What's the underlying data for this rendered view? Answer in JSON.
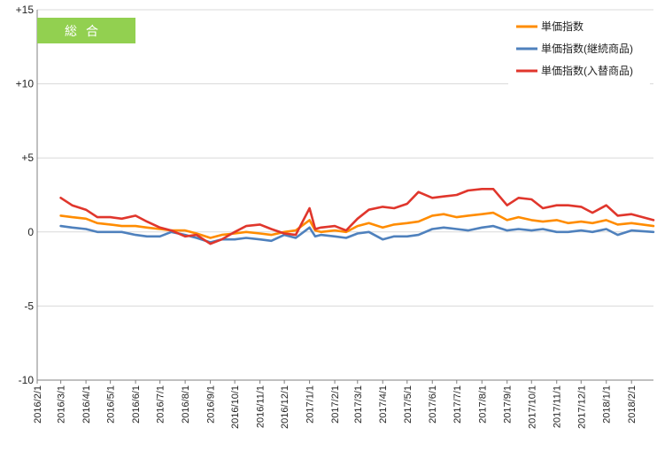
{
  "badge": {
    "label": "総合",
    "color": "#92d050"
  },
  "colors": {
    "axis": "#808080",
    "grid": "#d9d9d9"
  },
  "chart_data": {
    "type": "line",
    "title": "",
    "xlabel": "",
    "ylabel": "",
    "ylim": [
      -10,
      15
    ],
    "yticks": [
      {
        "value": 15,
        "label": "+15"
      },
      {
        "value": 10,
        "label": "+10"
      },
      {
        "value": 5,
        "label": "+5"
      },
      {
        "value": 0,
        "label": "0"
      },
      {
        "value": -5,
        "label": "-5"
      },
      {
        "value": -10,
        "label": "-10"
      }
    ],
    "x_start": "2016/2/1",
    "x_end": "2018/2/28",
    "xticks": [
      "2016/2/1",
      "2016/3/1",
      "2016/4/1",
      "2016/5/1",
      "2016/6/1",
      "2016/7/1",
      "2016/8/1",
      "2016/9/1",
      "2016/10/1",
      "2016/11/1",
      "2016/12/1",
      "2017/1/1",
      "2017/2/1",
      "2017/3/1",
      "2017/4/1",
      "2017/5/1",
      "2017/6/1",
      "2017/7/1",
      "2017/8/1",
      "2017/9/1",
      "2017/10/1",
      "2017/11/1",
      "2017/12/1",
      "2018/1/1",
      "2018/2/1"
    ],
    "grid": "horizontal",
    "legend_position": "top-right",
    "series": [
      {
        "name": "単価指数",
        "color": "#ff8c00",
        "points": [
          [
            "2016/3/1",
            1.1
          ],
          [
            "2016/3/15",
            1.0
          ],
          [
            "2016/4/1",
            0.9
          ],
          [
            "2016/4/15",
            0.6
          ],
          [
            "2016/5/1",
            0.5
          ],
          [
            "2016/5/15",
            0.4
          ],
          [
            "2016/6/1",
            0.4
          ],
          [
            "2016/6/15",
            0.3
          ],
          [
            "2016/7/1",
            0.2
          ],
          [
            "2016/7/15",
            0.1
          ],
          [
            "2016/8/1",
            0.1
          ],
          [
            "2016/8/15",
            -0.1
          ],
          [
            "2016/9/1",
            -0.4
          ],
          [
            "2016/9/15",
            -0.2
          ],
          [
            "2016/10/1",
            -0.1
          ],
          [
            "2016/10/15",
            0.0
          ],
          [
            "2016/11/1",
            -0.1
          ],
          [
            "2016/11/15",
            -0.2
          ],
          [
            "2016/12/1",
            0.0
          ],
          [
            "2016/12/15",
            0.1
          ],
          [
            "2017/1/1",
            0.8
          ],
          [
            "2017/1/8",
            0.1
          ],
          [
            "2017/1/15",
            0.0
          ],
          [
            "2017/2/1",
            0.1
          ],
          [
            "2017/2/15",
            0.0
          ],
          [
            "2017/3/1",
            0.4
          ],
          [
            "2017/3/15",
            0.6
          ],
          [
            "2017/4/1",
            0.3
          ],
          [
            "2017/4/15",
            0.5
          ],
          [
            "2017/5/1",
            0.6
          ],
          [
            "2017/5/15",
            0.7
          ],
          [
            "2017/6/1",
            1.1
          ],
          [
            "2017/6/15",
            1.2
          ],
          [
            "2017/7/1",
            1.0
          ],
          [
            "2017/7/15",
            1.1
          ],
          [
            "2017/8/1",
            1.2
          ],
          [
            "2017/8/15",
            1.3
          ],
          [
            "2017/9/1",
            0.8
          ],
          [
            "2017/9/15",
            1.0
          ],
          [
            "2017/10/1",
            0.8
          ],
          [
            "2017/10/15",
            0.7
          ],
          [
            "2017/11/1",
            0.8
          ],
          [
            "2017/11/15",
            0.6
          ],
          [
            "2017/12/1",
            0.7
          ],
          [
            "2017/12/15",
            0.6
          ],
          [
            "2018/1/1",
            0.8
          ],
          [
            "2018/1/15",
            0.5
          ],
          [
            "2018/2/1",
            0.6
          ],
          [
            "2018/2/28",
            0.4
          ]
        ]
      },
      {
        "name": "単価指数(継続商品)",
        "color": "#4f81bd",
        "points": [
          [
            "2016/3/1",
            0.4
          ],
          [
            "2016/3/15",
            0.3
          ],
          [
            "2016/4/1",
            0.2
          ],
          [
            "2016/4/15",
            0.0
          ],
          [
            "2016/5/1",
            0.0
          ],
          [
            "2016/5/15",
            0.0
          ],
          [
            "2016/6/1",
            -0.2
          ],
          [
            "2016/6/15",
            -0.3
          ],
          [
            "2016/7/1",
            -0.3
          ],
          [
            "2016/7/15",
            0.0
          ],
          [
            "2016/8/1",
            -0.2
          ],
          [
            "2016/8/15",
            -0.4
          ],
          [
            "2016/9/1",
            -0.7
          ],
          [
            "2016/9/15",
            -0.5
          ],
          [
            "2016/10/1",
            -0.5
          ],
          [
            "2016/10/15",
            -0.4
          ],
          [
            "2016/11/1",
            -0.5
          ],
          [
            "2016/11/15",
            -0.6
          ],
          [
            "2016/12/1",
            -0.2
          ],
          [
            "2016/12/15",
            -0.4
          ],
          [
            "2017/1/1",
            0.3
          ],
          [
            "2017/1/8",
            -0.3
          ],
          [
            "2017/1/15",
            -0.2
          ],
          [
            "2017/2/1",
            -0.3
          ],
          [
            "2017/2/15",
            -0.4
          ],
          [
            "2017/3/1",
            -0.1
          ],
          [
            "2017/3/15",
            0.0
          ],
          [
            "2017/4/1",
            -0.5
          ],
          [
            "2017/4/15",
            -0.3
          ],
          [
            "2017/5/1",
            -0.3
          ],
          [
            "2017/5/15",
            -0.2
          ],
          [
            "2017/6/1",
            0.2
          ],
          [
            "2017/6/15",
            0.3
          ],
          [
            "2017/7/1",
            0.2
          ],
          [
            "2017/7/15",
            0.1
          ],
          [
            "2017/8/1",
            0.3
          ],
          [
            "2017/8/15",
            0.4
          ],
          [
            "2017/9/1",
            0.1
          ],
          [
            "2017/9/15",
            0.2
          ],
          [
            "2017/10/1",
            0.1
          ],
          [
            "2017/10/15",
            0.2
          ],
          [
            "2017/11/1",
            0.0
          ],
          [
            "2017/11/15",
            0.0
          ],
          [
            "2017/12/1",
            0.1
          ],
          [
            "2017/12/15",
            0.0
          ],
          [
            "2018/1/1",
            0.2
          ],
          [
            "2018/1/15",
            -0.2
          ],
          [
            "2018/2/1",
            0.1
          ],
          [
            "2018/2/28",
            0.0
          ]
        ]
      },
      {
        "name": "単価指数(入替商品)",
        "color": "#e0362c",
        "points": [
          [
            "2016/3/1",
            2.3
          ],
          [
            "2016/3/15",
            1.8
          ],
          [
            "2016/4/1",
            1.5
          ],
          [
            "2016/4/15",
            1.0
          ],
          [
            "2016/5/1",
            1.0
          ],
          [
            "2016/5/15",
            0.9
          ],
          [
            "2016/6/1",
            1.1
          ],
          [
            "2016/6/15",
            0.7
          ],
          [
            "2016/7/1",
            0.3
          ],
          [
            "2016/7/15",
            0.1
          ],
          [
            "2016/8/1",
            -0.3
          ],
          [
            "2016/8/15",
            -0.2
          ],
          [
            "2016/9/1",
            -0.8
          ],
          [
            "2016/9/15",
            -0.5
          ],
          [
            "2016/10/1",
            0.0
          ],
          [
            "2016/10/15",
            0.4
          ],
          [
            "2016/11/1",
            0.5
          ],
          [
            "2016/11/15",
            0.2
          ],
          [
            "2016/12/1",
            -0.1
          ],
          [
            "2016/12/15",
            -0.2
          ],
          [
            "2017/1/1",
            1.6
          ],
          [
            "2017/1/8",
            0.2
          ],
          [
            "2017/1/15",
            0.3
          ],
          [
            "2017/2/1",
            0.4
          ],
          [
            "2017/2/15",
            0.1
          ],
          [
            "2017/3/1",
            0.9
          ],
          [
            "2017/3/15",
            1.5
          ],
          [
            "2017/4/1",
            1.7
          ],
          [
            "2017/4/15",
            1.6
          ],
          [
            "2017/5/1",
            1.9
          ],
          [
            "2017/5/15",
            2.7
          ],
          [
            "2017/6/1",
            2.3
          ],
          [
            "2017/6/15",
            2.4
          ],
          [
            "2017/7/1",
            2.5
          ],
          [
            "2017/7/15",
            2.8
          ],
          [
            "2017/8/1",
            2.9
          ],
          [
            "2017/8/15",
            2.9
          ],
          [
            "2017/9/1",
            1.8
          ],
          [
            "2017/9/15",
            2.3
          ],
          [
            "2017/10/1",
            2.2
          ],
          [
            "2017/10/15",
            1.6
          ],
          [
            "2017/11/1",
            1.8
          ],
          [
            "2017/11/15",
            1.8
          ],
          [
            "2017/12/1",
            1.7
          ],
          [
            "2017/12/15",
            1.3
          ],
          [
            "2018/1/1",
            1.8
          ],
          [
            "2018/1/15",
            1.1
          ],
          [
            "2018/2/1",
            1.2
          ],
          [
            "2018/2/28",
            0.8
          ]
        ]
      }
    ]
  }
}
